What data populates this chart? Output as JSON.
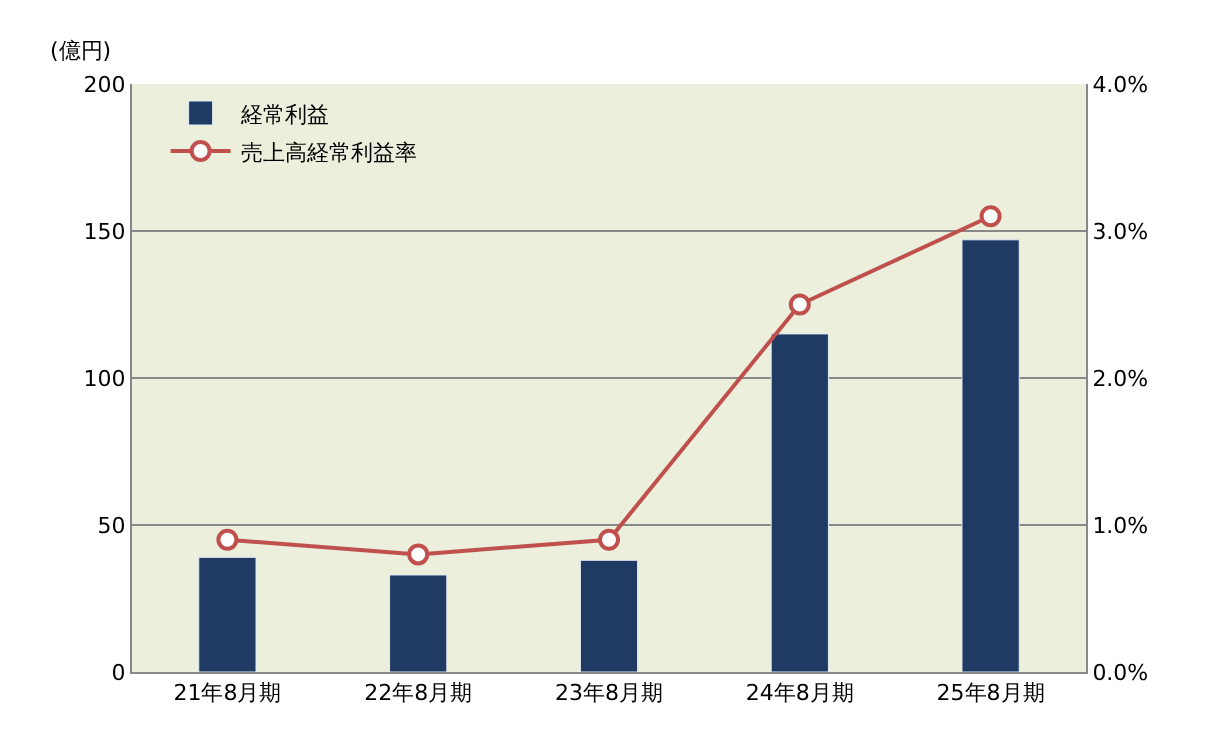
{
  "chart_data": {
    "type": "bar",
    "ylabel": "(億円)",
    "categories": [
      "21年8月期",
      "22年8月期",
      "23年8月期",
      "24年8月期",
      "25年8月期"
    ],
    "series": [
      {
        "name": "経常利益",
        "color": "#1f3a63",
        "values": [
          39,
          33,
          38,
          115,
          147
        ]
      },
      {
        "name": "売上高経常利益率",
        "type": "line",
        "axis": "y2",
        "color": "#c0504d",
        "marker": "circle",
        "values": [
          0.9,
          0.8,
          0.9,
          2.5,
          3.1
        ]
      }
    ],
    "ylim": [
      0,
      200
    ],
    "yticks": [
      0,
      50,
      100,
      150,
      200
    ],
    "y2lim": [
      0,
      4
    ],
    "y2ticks": [
      {
        "value": 0,
        "label": "0.0%"
      },
      {
        "value": 1,
        "label": "1.0%"
      },
      {
        "value": 2,
        "label": "2.0%"
      },
      {
        "value": 3,
        "label": "3.0%"
      },
      {
        "value": 4,
        "label": "4.0%"
      }
    ],
    "grid": "y",
    "legend": "top left"
  }
}
